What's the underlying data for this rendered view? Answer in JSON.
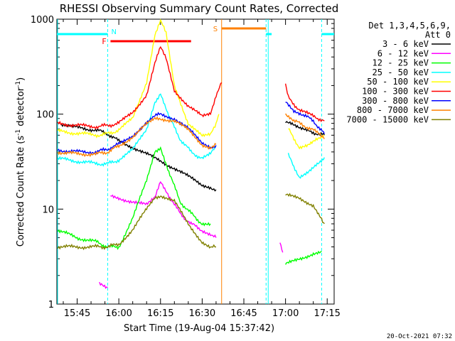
{
  "chart_data": {
    "type": "line",
    "title": "RHESSI Observing Summary Count Rates, Corrected",
    "xlabel": "Start Time (19-Aug-04 15:37:42)",
    "ylabel": "Corrected Count Rate (s⁻¹ detector⁻¹)",
    "ylabel_base": "Corrected Count Rate (s",
    "ylabel_mid": " detector",
    "ylabel_end": ")",
    "ylabel_sup": "-1",
    "yscale": "log",
    "ylim": [
      1,
      1000
    ],
    "xlim": [
      "15:37:42",
      "17:17:30"
    ],
    "x_ticks": [
      "15:45",
      "16:00",
      "16:15",
      "16:30",
      "16:45",
      "17:00",
      "17:15"
    ],
    "y_ticks": [
      "1",
      "10",
      "100",
      "1000"
    ],
    "det_label": "Det 1,3,4,5,6,9,",
    "att_label": "Att 0",
    "timestamp": "20-Oct-2021 07:32",
    "flags": [
      {
        "letter": "N",
        "meaning": "night",
        "color": "#00ffff"
      },
      {
        "letter": "F",
        "meaning": "flare",
        "color": "#ff0000"
      },
      {
        "letter": "S",
        "meaning": "SAA",
        "color": "#ff8000"
      }
    ],
    "series": [
      {
        "name": "3 - 6 keV",
        "color": "#000000",
        "segments": [
          [
            [
              "15:39",
              75
            ],
            [
              "15:45",
              72
            ],
            [
              "15:52",
              68
            ],
            [
              "15:56",
              62
            ],
            [
              "16:00",
              52
            ],
            [
              "16:05",
              45
            ],
            [
              "16:10",
              38
            ],
            [
              "16:15",
              32
            ],
            [
              "16:20",
              27
            ],
            [
              "16:25",
              22
            ],
            [
              "16:30",
              18
            ],
            [
              "16:33",
              17
            ],
            [
              "16:35",
              16
            ]
          ],
          [
            [
              "17:00",
              85
            ],
            [
              "17:02",
              78
            ],
            [
              "17:05",
              70
            ],
            [
              "17:08",
              66
            ],
            [
              "17:12",
              62
            ],
            [
              "17:14",
              60
            ]
          ]
        ]
      },
      {
        "name": "6 - 12 keV",
        "color": "#ff00ff",
        "segments": [
          [
            [
              "15:53",
              1.7
            ],
            [
              "15:56",
              1.5
            ]
          ],
          [
            [
              "15:57",
              14
            ],
            [
              "16:00",
              13
            ],
            [
              "16:05",
              12
            ],
            [
              "16:10",
              11
            ],
            [
              "16:13",
              13
            ],
            [
              "16:15",
              20
            ],
            [
              "16:18",
              14
            ],
            [
              "16:22",
              9
            ],
            [
              "16:26",
              7
            ],
            [
              "16:30",
              6
            ],
            [
              "16:33",
              5.5
            ],
            [
              "16:35",
              5
            ]
          ],
          [
            [
              "16:58",
              4.5
            ],
            [
              "16:59",
              3.5
            ]
          ]
        ]
      },
      {
        "name": "12 - 25 keV",
        "color": "#00ff00",
        "segments": [
          [
            [
              "15:38",
              6
            ],
            [
              "15:45",
              5
            ],
            [
              "15:52",
              4.5
            ],
            [
              "15:56",
              4
            ],
            [
              "16:00",
              4
            ],
            [
              "16:05",
              8
            ],
            [
              "16:10",
              20
            ],
            [
              "16:13",
              40
            ],
            [
              "16:15",
              45
            ],
            [
              "16:18",
              25
            ],
            [
              "16:22",
              12
            ],
            [
              "16:26",
              9
            ],
            [
              "16:30",
              7
            ],
            [
              "16:33",
              7
            ]
          ],
          [
            [
              "17:00",
              2.6
            ],
            [
              "17:05",
              3
            ],
            [
              "17:10",
              3.4
            ],
            [
              "17:13",
              3.6
            ]
          ]
        ]
      },
      {
        "name": "25 - 50 keV",
        "color": "#00ffff",
        "segments": [
          [
            [
              "15:38",
              34
            ],
            [
              "15:45",
              32
            ],
            [
              "15:52",
              30
            ],
            [
              "15:56",
              30
            ],
            [
              "16:00",
              33
            ],
            [
              "16:05",
              42
            ],
            [
              "16:10",
              70
            ],
            [
              "16:13",
              135
            ],
            [
              "16:15",
              165
            ],
            [
              "16:18",
              95
            ],
            [
              "16:22",
              55
            ],
            [
              "16:26",
              40
            ],
            [
              "16:30",
              34
            ],
            [
              "16:33",
              38
            ],
            [
              "16:35",
              45
            ]
          ],
          [
            [
              "17:01",
              38
            ],
            [
              "17:03",
              27
            ],
            [
              "17:05",
              22
            ],
            [
              "17:08",
              25
            ],
            [
              "17:11",
              30
            ],
            [
              "17:14",
              35
            ]
          ]
        ]
      },
      {
        "name": "50 - 100 keV",
        "color": "#ffff00",
        "segments": [
          [
            [
              "15:38",
              66
            ],
            [
              "15:45",
              63
            ],
            [
              "15:52",
              60
            ],
            [
              "15:56",
              62
            ],
            [
              "16:00",
              68
            ],
            [
              "16:05",
              90
            ],
            [
              "16:10",
              220
            ],
            [
              "16:13",
              700
            ],
            [
              "16:15",
              950
            ],
            [
              "16:17",
              720
            ],
            [
              "16:20",
              200
            ],
            [
              "16:25",
              80
            ],
            [
              "16:30",
              58
            ],
            [
              "16:33",
              60
            ],
            [
              "16:35",
              80
            ],
            [
              "16:36",
              100
            ]
          ],
          [
            [
              "17:01",
              70
            ],
            [
              "17:03",
              55
            ],
            [
              "17:05",
              45
            ],
            [
              "17:08",
              48
            ],
            [
              "17:11",
              55
            ],
            [
              "17:14",
              60
            ]
          ]
        ]
      },
      {
        "name": "100 - 300 keV",
        "color": "#ff0000",
        "segments": [
          [
            [
              "15:38",
              80
            ],
            [
              "15:45",
              76
            ],
            [
              "15:52",
              74
            ],
            [
              "15:56",
              76
            ],
            [
              "16:00",
              80
            ],
            [
              "16:05",
              105
            ],
            [
              "16:10",
              160
            ],
            [
              "16:13",
              350
            ],
            [
              "16:15",
              500
            ],
            [
              "16:17",
              400
            ],
            [
              "16:20",
              180
            ],
            [
              "16:25",
              120
            ],
            [
              "16:30",
              95
            ],
            [
              "16:33",
              100
            ],
            [
              "16:35",
              160
            ],
            [
              "16:37",
              215
            ]
          ],
          [
            [
              "17:00",
              210
            ],
            [
              "17:01",
              150
            ],
            [
              "17:05",
              110
            ],
            [
              "17:10",
              95
            ],
            [
              "17:14",
              85
            ]
          ]
        ]
      },
      {
        "name": "300 - 800 keV",
        "color": "#0000ff",
        "segments": [
          [
            [
              "15:38",
              42
            ],
            [
              "15:45",
              40
            ],
            [
              "15:52",
              40
            ],
            [
              "15:56",
              43
            ],
            [
              "16:00",
              48
            ],
            [
              "16:05",
              60
            ],
            [
              "16:10",
              80
            ],
            [
              "16:13",
              95
            ],
            [
              "16:15",
              100
            ],
            [
              "16:20",
              90
            ],
            [
              "16:25",
              70
            ],
            [
              "16:30",
              50
            ],
            [
              "16:33",
              45
            ],
            [
              "16:35",
              47
            ]
          ],
          [
            [
              "17:00",
              140
            ],
            [
              "17:03",
              110
            ],
            [
              "17:06",
              100
            ],
            [
              "17:10",
              85
            ],
            [
              "17:14",
              62
            ]
          ]
        ]
      },
      {
        "name": "800 - 7000 keV",
        "color": "#ff8000",
        "segments": [
          [
            [
              "15:38",
              40
            ],
            [
              "15:45",
              38
            ],
            [
              "15:52",
              38
            ],
            [
              "15:56",
              40
            ],
            [
              "16:00",
              46
            ],
            [
              "16:05",
              58
            ],
            [
              "16:10",
              78
            ],
            [
              "16:13",
              88
            ],
            [
              "16:15",
              90
            ],
            [
              "16:20",
              85
            ],
            [
              "16:25",
              68
            ],
            [
              "16:30",
              48
            ],
            [
              "16:33",
              45
            ],
            [
              "16:35",
              48
            ]
          ],
          [
            [
              "17:00",
              100
            ],
            [
              "17:03",
              85
            ],
            [
              "17:07",
              75
            ],
            [
              "17:11",
              65
            ],
            [
              "17:14",
              55
            ]
          ]
        ]
      },
      {
        "name": "7000 - 15000 keV",
        "color": "#808000",
        "segments": [
          [
            [
              "15:38",
              4
            ],
            [
              "15:45",
              4
            ],
            [
              "15:52",
              4
            ],
            [
              "15:56",
              4
            ],
            [
              "16:00",
              4.3
            ],
            [
              "16:05",
              6
            ],
            [
              "16:10",
              10
            ],
            [
              "16:13",
              13
            ],
            [
              "16:15",
              14
            ],
            [
              "16:20",
              12
            ],
            [
              "16:25",
              7
            ],
            [
              "16:30",
              4.5
            ],
            [
              "16:33",
              4
            ],
            [
              "16:35",
              4
            ]
          ],
          [
            [
              "17:00",
              14
            ],
            [
              "17:05",
              13
            ],
            [
              "17:10",
              11
            ],
            [
              "17:13",
              8
            ],
            [
              "17:14",
              7
            ]
          ]
        ]
      }
    ],
    "night_intervals": [
      [
        "15:37:42",
        "15:56"
      ],
      [
        "16:53",
        "16:55"
      ],
      [
        "17:13",
        "17:17:30"
      ]
    ],
    "flare_interval": [
      "15:57",
      "16:26"
    ],
    "saa_interval": [
      "16:37",
      "16:53"
    ],
    "night_dashed_lines": [
      "15:56",
      "16:53",
      "17:13"
    ],
    "saa_line": "16:37"
  }
}
